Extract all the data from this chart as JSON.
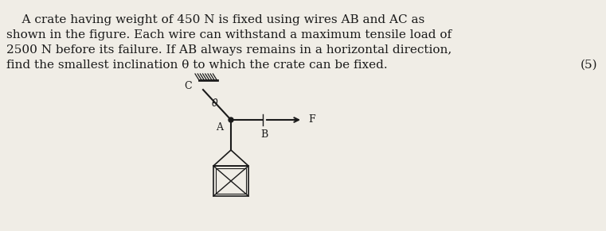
{
  "background_color": "#f0ede6",
  "text_color": "#1a1a1a",
  "line1": "    A crate having weight of 450 N is fixed using wires AB and AC as",
  "line2": "shown in the figure. Each wire can withstand a maximum tensile load of",
  "line3": "2500 N before its failure. If AB always remains in a horizontal direction,",
  "line4": "find the smallest inclination θ to which the crate can be fixed.",
  "marks": "(5)",
  "fig_width": 7.61,
  "fig_height": 2.91,
  "dpi": 100,
  "fontsize_body": 11.0
}
